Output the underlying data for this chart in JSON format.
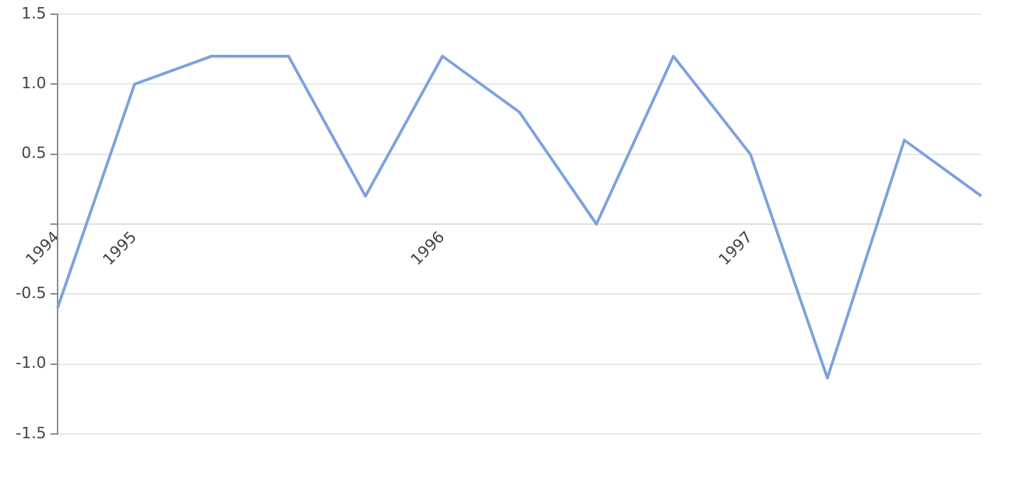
{
  "chart_data": {
    "type": "line",
    "categories": [
      "1994",
      "1995",
      null,
      null,
      null,
      "1996",
      null,
      null,
      null,
      "1997",
      null,
      null,
      null
    ],
    "series": [
      {
        "color": "#7ba2e0",
        "values": [
          -0.6,
          1.0,
          1.2,
          1.2,
          0.2,
          1.2,
          0.8,
          0.0,
          1.2,
          0.5,
          -1.1,
          0.6,
          0.2
        ]
      }
    ],
    "ylim": [
      -1.5,
      1.5
    ],
    "yticks": [
      {
        "value": -1.5,
        "label": "-1.5"
      },
      {
        "value": -1,
        "label": "-1.0"
      },
      {
        "value": -0.5,
        "label": "-0.5"
      },
      {
        "value": 0,
        "label": null
      },
      {
        "value": 0.5,
        "label": "0.5"
      },
      {
        "value": 1,
        "label": "1.0"
      },
      {
        "value": 1.5,
        "label": "1.5"
      }
    ],
    "grid": "y",
    "legend": false,
    "marker": "none",
    "line_style": "solid"
  }
}
